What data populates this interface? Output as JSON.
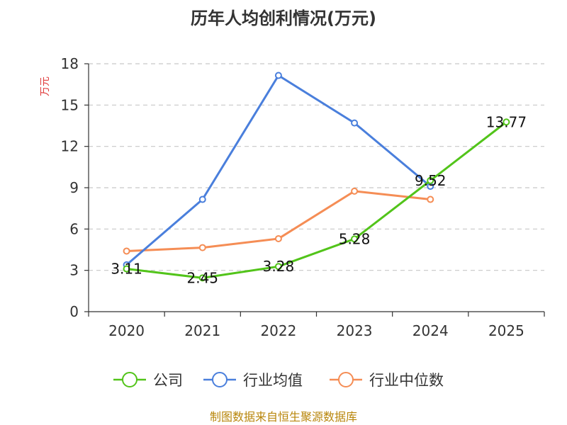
{
  "chart_data": {
    "type": "line",
    "title": "历年人均创利情况(万元)",
    "ylabel": "万元",
    "xlabel": "",
    "categories": [
      "2020",
      "2021",
      "2022",
      "2023",
      "2024",
      "2025"
    ],
    "ylim": [
      0,
      18
    ],
    "yticks": [
      0,
      3,
      6,
      9,
      12,
      15,
      18
    ],
    "grid": true,
    "legend_position": "bottom",
    "series": [
      {
        "name": "公司",
        "color": "#52c41a",
        "values": [
          3.11,
          2.45,
          3.28,
          5.28,
          9.52,
          13.77
        ],
        "labels": [
          "3.11",
          "2.45",
          "3.28",
          "5.28",
          "9.52",
          "13.77"
        ]
      },
      {
        "name": "行业均值",
        "color": "#4a7fdc",
        "values": [
          3.4,
          8.15,
          17.15,
          13.7,
          9.1,
          null
        ]
      },
      {
        "name": "行业中位数",
        "color": "#f58d55",
        "values": [
          4.4,
          4.65,
          5.3,
          8.75,
          8.15,
          null
        ]
      }
    ],
    "source": "制图数据来自恒生聚源数据库"
  }
}
